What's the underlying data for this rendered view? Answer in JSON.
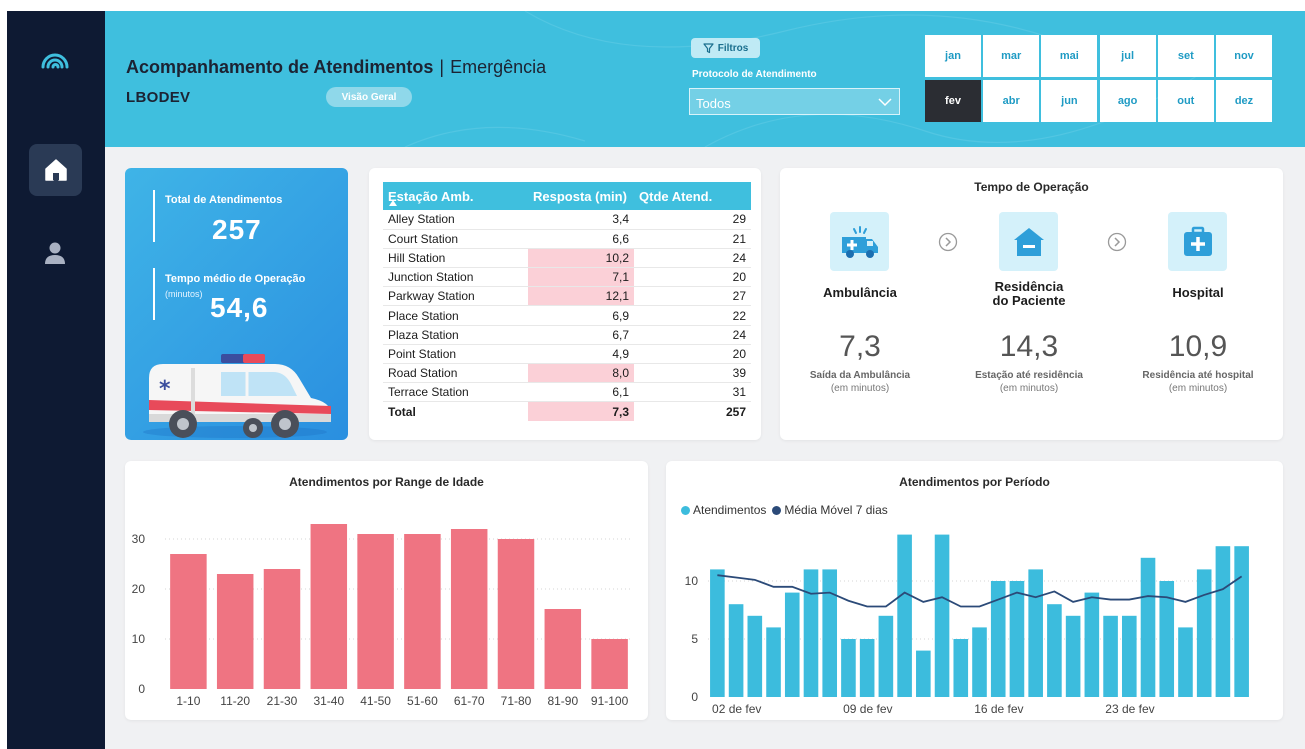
{
  "header": {
    "title": "Acompanhamento de Atendimentos",
    "separator": "|",
    "subtitle": "Emergência",
    "org": "LBODEV",
    "view_button": "Visão Geral",
    "filters_button": "Filtros",
    "protocol_label": "Protocolo de Atendimento",
    "protocol_value": "Todos",
    "months_top": [
      "jan",
      "mar",
      "mai",
      "jul",
      "set",
      "nov"
    ],
    "months_bottom": [
      "fev",
      "abr",
      "jun",
      "ago",
      "out",
      "dez"
    ],
    "selected_month": "fev"
  },
  "kpi": {
    "total_label": "Total de Atendimentos",
    "total_value": "257",
    "avg_label": "Tempo médio de Operação",
    "avg_unit": "(minutos)",
    "avg_value": "54,6"
  },
  "table": {
    "headers": [
      "Estação Amb.",
      "Resposta (min)",
      "Qtde Atend."
    ],
    "rows": [
      {
        "station": "Alley Station",
        "resp": "3,4",
        "qty": "29",
        "hl": false
      },
      {
        "station": "Court Station",
        "resp": "6,6",
        "qty": "21",
        "hl": false
      },
      {
        "station": "Hill Station",
        "resp": "10,2",
        "qty": "24",
        "hl": true
      },
      {
        "station": "Junction Station",
        "resp": "7,1",
        "qty": "20",
        "hl": true
      },
      {
        "station": "Parkway Station",
        "resp": "12,1",
        "qty": "27",
        "hl": true
      },
      {
        "station": "Place Station",
        "resp": "6,9",
        "qty": "22",
        "hl": false
      },
      {
        "station": "Plaza Station",
        "resp": "6,7",
        "qty": "24",
        "hl": false
      },
      {
        "station": "Point Station",
        "resp": "4,9",
        "qty": "20",
        "hl": false
      },
      {
        "station": "Road Station",
        "resp": "8,0",
        "qty": "39",
        "hl": true
      },
      {
        "station": "Terrace Station",
        "resp": "6,1",
        "qty": "31",
        "hl": false
      }
    ],
    "total": {
      "station": "Total",
      "resp": "7,3",
      "qty": "257"
    }
  },
  "ops": {
    "title": "Tempo de Operação",
    "stages": [
      {
        "name": "Ambulância",
        "name2": "",
        "value": "7,3",
        "label": "Saída da Ambulância",
        "unit": "(em minutos)",
        "icon": "ambulance-icon"
      },
      {
        "name": "Residência",
        "name2": "do Paciente",
        "value": "14,3",
        "label": "Estação até residência",
        "unit": "(em minutos)",
        "icon": "house-icon"
      },
      {
        "name": "Hospital",
        "name2": "",
        "value": "10,9",
        "label": "Residência até hospital",
        "unit": "(em minutos)",
        "icon": "hospital-icon"
      }
    ]
  },
  "colors": {
    "header": "#3fbfde",
    "sidebar": "#0e1a33",
    "bar_age": "#ef7482",
    "bar_period": "#3cbcdd",
    "line_period": "#2b4a78",
    "highlight": "#fbd0d7"
  },
  "chart_data": [
    {
      "type": "bar",
      "title": "Atendimentos por Range de Idade",
      "categories": [
        "1-10",
        "11-20",
        "21-30",
        "31-40",
        "41-50",
        "51-60",
        "61-70",
        "71-80",
        "81-90",
        "91-100"
      ],
      "values": [
        27,
        23,
        24,
        33,
        31,
        31,
        32,
        30,
        16,
        10
      ],
      "yticks": [
        0,
        10,
        20,
        30
      ],
      "ylim": [
        0,
        35
      ],
      "xlabel": "",
      "ylabel": ""
    },
    {
      "type": "bar",
      "title": "Atendimentos por Período",
      "legend": [
        "Atendimentos",
        "Média Móvel 7 dias"
      ],
      "x_ticks": [
        "02 de fev",
        "09 de fev",
        "16 de fev",
        "23 de fev"
      ],
      "x_tick_index": [
        0,
        7,
        14,
        21
      ],
      "series": [
        {
          "name": "Atendimentos",
          "type": "bar",
          "values": [
            11,
            8,
            7,
            6,
            9,
            11,
            11,
            5,
            5,
            7,
            14,
            4,
            14,
            5,
            6,
            10,
            10,
            11,
            8,
            7,
            9,
            7,
            7,
            12,
            10,
            6,
            11,
            13,
            13
          ]
        },
        {
          "name": "Média Móvel 7 dias",
          "type": "line",
          "values": [
            10.5,
            10.3,
            10.1,
            9.5,
            9.5,
            8.9,
            9.0,
            8.3,
            7.8,
            7.8,
            9.0,
            8.2,
            8.6,
            7.8,
            7.8,
            8.4,
            9.0,
            8.6,
            9.1,
            8.2,
            8.6,
            8.4,
            8.4,
            8.7,
            8.6,
            8.2,
            8.8,
            9.3,
            10.4
          ]
        }
      ],
      "yticks": [
        0,
        5,
        10
      ],
      "ylim": [
        0,
        15
      ],
      "xlabel": "",
      "ylabel": ""
    }
  ]
}
